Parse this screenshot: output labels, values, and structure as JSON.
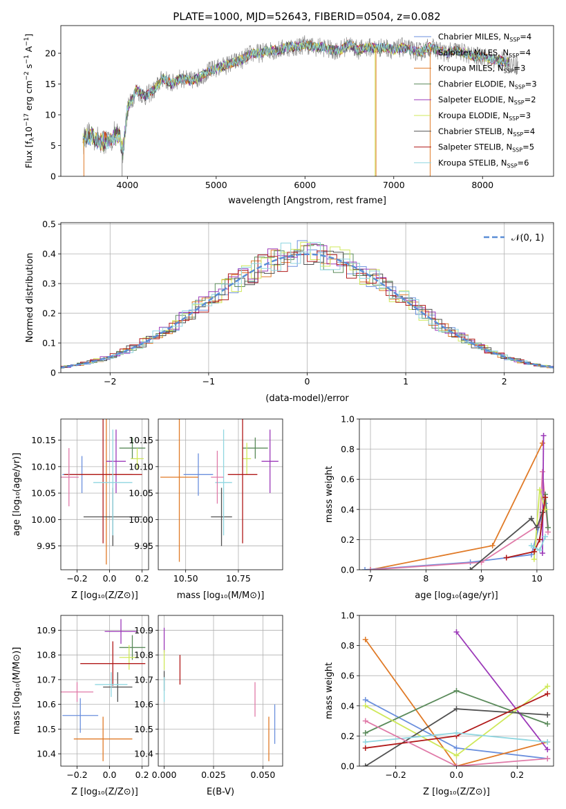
{
  "figure": {
    "title": "PLATE=1000, MJD=52643, FIBERID=0504, z=0.082"
  },
  "colors": {
    "series": [
      "#6a8fdd",
      "#e07a27",
      "#5a8a5a",
      "#9b38b8",
      "#cfe85a",
      "#505050",
      "#b01818",
      "#8fd6e0",
      "#e07aa8"
    ],
    "model_palette": [
      "#6a8fdd",
      "#e07a27",
      "#5a8a5a",
      "#9b38b8",
      "#cfe85a",
      "#505050",
      "#b01818",
      "#8fd6e0"
    ],
    "grid": "#b0b0b0",
    "gauss": "#5a8ed6"
  },
  "chart_data": [
    {
      "id": "spectrum",
      "type": "line",
      "title": "PLATE=1000, MJD=52643, FIBERID=0504, z=0.082",
      "xlabel": "wavelength [Angstrom, rest frame]",
      "ylabel_parts": [
        "Flux [f",
        "λ",
        "10",
        "−17",
        " erg cm",
        "−2",
        " s",
        "−1",
        " A",
        "−1",
        "]"
      ],
      "xlim": [
        3250,
        8800
      ],
      "ylim": [
        0,
        24.5
      ],
      "xticks": [
        4000,
        5000,
        6000,
        7000,
        8000
      ],
      "yticks": [
        0,
        5,
        10,
        15,
        20
      ],
      "grid": false,
      "legend_position": "upper right",
      "legend": [
        {
          "label": "Chabrier MILES, N",
          "sub": "SSP",
          "tail": "=4",
          "color": "#6a8fdd"
        },
        {
          "label": "Salpeter MILES, N",
          "sub": "SSP",
          "tail": "=4",
          "color": "#8a8a8a"
        },
        {
          "label": "Kroupa MILES, N",
          "sub": "SSP",
          "tail": "=3",
          "color": "#e07a27"
        },
        {
          "label": "Chabrier ELODIE, N",
          "sub": "SSP",
          "tail": "=3",
          "color": "#5a8a5a"
        },
        {
          "label": "Salpeter ELODIE, N",
          "sub": "SSP",
          "tail": "=2",
          "color": "#9b38b8"
        },
        {
          "label": "Kroupa ELODIE, N",
          "sub": "SSP",
          "tail": "=3",
          "color": "#cfe85a"
        },
        {
          "label": "Chabrier STELIB, N",
          "sub": "SSP",
          "tail": "=4",
          "color": "#505050"
        },
        {
          "label": "Salpeter STELIB, N",
          "sub": "SSP",
          "tail": "=5",
          "color": "#b01818"
        },
        {
          "label": "Kroupa STELIB, N",
          "sub": "SSP",
          "tail": "=6",
          "color": "#8fd6e0"
        }
      ],
      "continuum_nodes": [
        [
          3500,
          6
        ],
        [
          3600,
          6.5
        ],
        [
          3700,
          5.5
        ],
        [
          3800,
          6
        ],
        [
          3900,
          7
        ],
        [
          3950,
          4
        ],
        [
          4000,
          11
        ],
        [
          4100,
          14
        ],
        [
          4200,
          13
        ],
        [
          4300,
          14
        ],
        [
          4400,
          16
        ],
        [
          4500,
          15
        ],
        [
          4600,
          16
        ],
        [
          4700,
          15.5
        ],
        [
          4800,
          16
        ],
        [
          4900,
          17
        ],
        [
          5000,
          17.5
        ],
        [
          5100,
          18
        ],
        [
          5200,
          18.5
        ],
        [
          5300,
          19
        ],
        [
          5400,
          20
        ],
        [
          5500,
          20
        ],
        [
          5600,
          20.5
        ],
        [
          5700,
          20.5
        ],
        [
          5800,
          21
        ],
        [
          5900,
          21
        ],
        [
          6000,
          21.5
        ],
        [
          6100,
          21
        ],
        [
          6200,
          21
        ],
        [
          6300,
          20.5
        ],
        [
          6400,
          20.5
        ],
        [
          6500,
          21.5
        ],
        [
          6600,
          20.5
        ],
        [
          6700,
          21
        ],
        [
          6800,
          20.8
        ],
        [
          6900,
          21
        ],
        [
          7000,
          20.5
        ],
        [
          7100,
          21
        ],
        [
          7200,
          20.5
        ],
        [
          7300,
          20.2
        ],
        [
          7400,
          21
        ],
        [
          7500,
          20.5
        ],
        [
          7600,
          20
        ],
        [
          7700,
          20.5
        ],
        [
          7800,
          20
        ],
        [
          7900,
          19.5
        ],
        [
          8000,
          19.5
        ],
        [
          8100,
          19
        ],
        [
          8200,
          18.8
        ],
        [
          8300,
          18.5
        ],
        [
          8400,
          18
        ]
      ],
      "spikes": [
        [
          3510,
          0,
          "#e07a27"
        ],
        [
          3940,
          0,
          "#8a8a8a"
        ],
        [
          6800,
          0,
          "#e07a27"
        ],
        [
          6790,
          0,
          "#cfe85a"
        ],
        [
          7410,
          0,
          "#e07a27"
        ]
      ]
    },
    {
      "id": "residuals",
      "type": "histogram",
      "xlabel": "(data-model)/error",
      "ylabel": "Normed distribution",
      "xlim": [
        -2.5,
        2.5
      ],
      "ylim": [
        0,
        0.505
      ],
      "xticks": [
        -2,
        -1,
        0,
        1,
        2
      ],
      "yticks": [
        0.0,
        0.1,
        0.2,
        0.3,
        0.4,
        0.5
      ],
      "grid": true,
      "legend_position": "upper right",
      "legend": [
        {
          "label": "𝒩(0, 1)",
          "style": "dashed",
          "color": "#5a8ed6"
        }
      ],
      "gaussian": {
        "mean": 0,
        "sigma": 1
      },
      "bin_width": 0.1
    },
    {
      "id": "age_vs_Z",
      "type": "errorbar",
      "xlabel": "Z [log₁₀(Z/Z⊙)]",
      "ylabel": "age  [log₁₀(age/yr)]",
      "xlim": [
        -0.3,
        0.24
      ],
      "ylim": [
        9.905,
        10.19
      ],
      "xticks": [
        -0.2,
        0.0,
        0.2
      ],
      "xticklabels": [
        "−0.2",
        "0.0",
        "0.2"
      ],
      "yticks": [
        9.95,
        10.0,
        10.05,
        10.1,
        10.15
      ],
      "yticklabels": [
        "9.95",
        "10.00",
        "10.05",
        "10.10",
        "10.15"
      ],
      "grid": true,
      "points": [
        {
          "x": -0.17,
          "xerr": 0.12,
          "y": 10.085,
          "yerr": 0.035,
          "color": "#6a8fdd"
        },
        {
          "x": -0.02,
          "xerr": 0.16,
          "y": 10.085,
          "yerr": 0.17,
          "color": "#e07a27"
        },
        {
          "x": 0.14,
          "xerr": 0.08,
          "y": 10.135,
          "yerr": 0.02,
          "color": "#5a8a5a"
        },
        {
          "x": 0.04,
          "xerr": 0.06,
          "y": 10.11,
          "yerr": 0.06,
          "color": "#9b38b8"
        },
        {
          "x": 0.17,
          "xerr": 0.04,
          "y": 10.115,
          "yerr": 0.02,
          "color": "#cfe85a"
        },
        {
          "x": 0.02,
          "xerr": 0.18,
          "y": 10.005,
          "yerr": 0.055,
          "color": "#505050"
        },
        {
          "x": -0.04,
          "xerr": 0.24,
          "y": 10.085,
          "yerr": 0.13,
          "color": "#b01818"
        },
        {
          "x": 0.02,
          "xerr": 0.12,
          "y": 10.07,
          "yerr": 0.1,
          "color": "#8fd6e0"
        },
        {
          "x": -0.25,
          "xerr": 0.06,
          "y": 10.08,
          "yerr": 0.055,
          "color": "#e07aa8"
        }
      ]
    },
    {
      "id": "age_vs_mass",
      "type": "errorbar",
      "xlabel": "mass [log₁₀(M/M⊙)]",
      "xlim": [
        10.37,
        10.96
      ],
      "ylim": [
        9.905,
        10.19
      ],
      "xticks": [
        10.5,
        10.75
      ],
      "xticklabels": [
        "10.50",
        "10.75"
      ],
      "yticks": [
        9.95,
        10.0,
        10.05,
        10.1,
        10.15
      ],
      "yticklabels": [
        "9.95",
        "10.00",
        "10.05",
        "10.10",
        "10.15"
      ],
      "grid": true,
      "points": [
        {
          "x": 10.56,
          "xerr": 0.07,
          "y": 10.085,
          "yerr": 0.04,
          "color": "#6a8fdd"
        },
        {
          "x": 10.47,
          "xerr": 0.09,
          "y": 10.08,
          "yerr": 0.16,
          "color": "#e07a27"
        },
        {
          "x": 10.83,
          "xerr": 0.06,
          "y": 10.135,
          "yerr": 0.02,
          "color": "#5a8a5a"
        },
        {
          "x": 10.9,
          "xerr": 0.04,
          "y": 10.11,
          "yerr": 0.06,
          "color": "#9b38b8"
        },
        {
          "x": 10.79,
          "xerr": 0.02,
          "y": 10.115,
          "yerr": 0.03,
          "color": "#cfe85a"
        },
        {
          "x": 10.67,
          "xerr": 0.05,
          "y": 10.005,
          "yerr": 0.055,
          "color": "#505050"
        },
        {
          "x": 10.77,
          "xerr": 0.07,
          "y": 10.085,
          "yerr": 0.13,
          "color": "#b01818"
        },
        {
          "x": 10.68,
          "xerr": 0.04,
          "y": 10.07,
          "yerr": 0.1,
          "color": "#8fd6e0"
        },
        {
          "x": 10.65,
          "xerr": 0.03,
          "y": 10.08,
          "yerr": 0.05,
          "color": "#e07aa8"
        }
      ]
    },
    {
      "id": "weight_vs_age",
      "type": "line",
      "xlabel": "age  [log₁₀(age/yr)]",
      "ylabel": "mass weight",
      "xlim": [
        6.8,
        10.3
      ],
      "ylim": [
        0,
        1.0
      ],
      "xticks": [
        7,
        8,
        9,
        10
      ],
      "yticks": [
        0.0,
        0.2,
        0.4,
        0.6,
        0.8,
        1.0
      ],
      "yticklabels": [
        "0.0",
        "0.2",
        "0.4",
        "0.6",
        "0.8",
        "1.0"
      ],
      "grid": true,
      "series": [
        {
          "x": [
            7.0,
            9.2,
            10.1
          ],
          "y": [
            0.0,
            0.16,
            0.84
          ],
          "color": "#e07a27"
        },
        {
          "x": [
            6.9,
            8.8,
            9.9,
            10.15
          ],
          "y": [
            0.0,
            0.05,
            0.1,
            0.44
          ],
          "color": "#6a8fdd"
        },
        {
          "x": [
            7.0,
            9.0,
            10.05,
            10.1,
            10.2
          ],
          "y": [
            0.0,
            0.05,
            0.3,
            0.65,
            0.25
          ],
          "color": "#e07aa8"
        },
        {
          "x": [
            10.05,
            10.15,
            10.2
          ],
          "y": [
            0.2,
            0.5,
            0.28
          ],
          "color": "#5a8a5a"
        },
        {
          "x": [
            10.1,
            10.12
          ],
          "y": [
            0.11,
            0.89
          ],
          "color": "#9b38b8"
        },
        {
          "x": [
            9.95,
            10.05,
            10.15
          ],
          "y": [
            0.07,
            0.53,
            0.4
          ],
          "color": "#cfe85a"
        },
        {
          "x": [
            8.8,
            9.9,
            10.0,
            10.1
          ],
          "y": [
            0.0,
            0.34,
            0.28,
            0.38
          ],
          "color": "#505050"
        },
        {
          "x": [
            9.45,
            9.95,
            10.05,
            10.15
          ],
          "y": [
            0.08,
            0.12,
            0.2,
            0.48
          ],
          "color": "#b01818"
        },
        {
          "x": [
            9.9,
            10.05,
            10.15
          ],
          "y": [
            0.16,
            0.13,
            0.22
          ],
          "color": "#8fd6e0"
        }
      ]
    },
    {
      "id": "mass_vs_Z",
      "type": "errorbar",
      "xlabel": "Z [log₁₀(Z/Z⊙)]",
      "ylabel": "mass [log₁₀(M/M⊙)]",
      "xlim": [
        -0.3,
        0.24
      ],
      "ylim": [
        10.35,
        10.96
      ],
      "xticks": [
        -0.2,
        0.0,
        0.2
      ],
      "xticklabels": [
        "−0.2",
        "0.0",
        "0.2"
      ],
      "yticks": [
        10.4,
        10.5,
        10.6,
        10.7,
        10.8,
        10.9
      ],
      "grid": true,
      "points": [
        {
          "x": -0.18,
          "xerr": 0.11,
          "y": 10.555,
          "yerr": 0.07,
          "color": "#6a8fdd"
        },
        {
          "x": -0.04,
          "xerr": 0.18,
          "y": 10.46,
          "yerr": 0.09,
          "color": "#e07a27"
        },
        {
          "x": 0.14,
          "xerr": 0.08,
          "y": 10.83,
          "yerr": 0.05,
          "color": "#5a8a5a"
        },
        {
          "x": 0.07,
          "xerr": 0.1,
          "y": 10.895,
          "yerr": 0.05,
          "color": "#9b38b8"
        },
        {
          "x": 0.12,
          "xerr": 0.06,
          "y": 10.79,
          "yerr": 0.05,
          "color": "#cfe85a"
        },
        {
          "x": 0.05,
          "xerr": 0.09,
          "y": 10.67,
          "yerr": 0.06,
          "color": "#505050"
        },
        {
          "x": 0.02,
          "xerr": 0.2,
          "y": 10.765,
          "yerr": 0.09,
          "color": "#b01818"
        },
        {
          "x": 0.01,
          "xerr": 0.1,
          "y": 10.68,
          "yerr": 0.05,
          "color": "#8fd6e0"
        },
        {
          "x": -0.2,
          "xerr": 0.1,
          "y": 10.65,
          "yerr": 0.04,
          "color": "#e07aa8"
        }
      ]
    },
    {
      "id": "mass_vs_ebv",
      "type": "errorbar",
      "xlabel": "E(B-V)",
      "xlim": [
        -0.003,
        0.06
      ],
      "ylim": [
        10.35,
        10.96
      ],
      "xticks": [
        0.0,
        0.025,
        0.05
      ],
      "xticklabels": [
        "0.000",
        "0.025",
        "0.050"
      ],
      "yticks": [
        10.4,
        10.5,
        10.6,
        10.7,
        10.8,
        10.9
      ],
      "grid": true,
      "points": [
        {
          "x": 0.056,
          "xerr": 0,
          "y": 10.52,
          "yerr": 0.08,
          "color": "#6a8fdd"
        },
        {
          "x": 0.053,
          "xerr": 0,
          "y": 10.46,
          "yerr": 0.09,
          "color": "#e07a27"
        },
        {
          "x": 0.0,
          "xerr": 0,
          "y": 10.86,
          "yerr": 0.05,
          "color": "#9b38b8"
        },
        {
          "x": 0.0,
          "xerr": 0,
          "y": 10.78,
          "yerr": 0.04,
          "color": "#cfe85a"
        },
        {
          "x": 0.0,
          "xerr": 0,
          "y": 10.695,
          "yerr": 0.04,
          "color": "#505050"
        },
        {
          "x": 0.008,
          "xerr": 0,
          "y": 10.74,
          "yerr": 0.06,
          "color": "#b01818"
        },
        {
          "x": 0.0,
          "xerr": 0,
          "y": 10.66,
          "yerr": 0.05,
          "color": "#8fd6e0"
        },
        {
          "x": 0.046,
          "xerr": 0,
          "y": 10.62,
          "yerr": 0.07,
          "color": "#e07aa8"
        }
      ]
    },
    {
      "id": "weight_vs_Z",
      "type": "line",
      "xlabel": "Z [log₁₀(Z/Z⊙)]",
      "ylabel": "mass weight",
      "xlim": [
        -0.32,
        0.32
      ],
      "ylim": [
        0,
        1.0
      ],
      "xticks": [
        -0.2,
        0.0,
        0.2
      ],
      "xticklabels": [
        "−0.2",
        "0.0",
        "0.2"
      ],
      "yticks": [
        0.0,
        0.2,
        0.4,
        0.6,
        0.8,
        1.0
      ],
      "yticklabels": [
        "0.0",
        "0.2",
        "0.4",
        "0.6",
        "0.8",
        "1.0"
      ],
      "grid": true,
      "series": [
        {
          "x": [
            -0.3,
            0.0,
            0.3
          ],
          "y": [
            0.44,
            0.12,
            0.05
          ],
          "color": "#6a8fdd"
        },
        {
          "x": [
            -0.3,
            0.0,
            0.3
          ],
          "y": [
            0.84,
            0.0,
            0.16
          ],
          "color": "#e07a27"
        },
        {
          "x": [
            -0.3,
            0.0,
            0.3
          ],
          "y": [
            0.22,
            0.5,
            0.28
          ],
          "color": "#5a8a5a"
        },
        {
          "x": [
            0.0,
            0.3
          ],
          "y": [
            0.89,
            0.11
          ],
          "color": "#9b38b8"
        },
        {
          "x": [
            -0.3,
            0.0,
            0.3
          ],
          "y": [
            0.4,
            0.07,
            0.53
          ],
          "color": "#cfe85a"
        },
        {
          "x": [
            -0.3,
            0.0,
            0.3
          ],
          "y": [
            0.0,
            0.38,
            0.34
          ],
          "color": "#505050"
        },
        {
          "x": [
            -0.3,
            0.0,
            0.3
          ],
          "y": [
            0.12,
            0.2,
            0.48
          ],
          "color": "#b01818"
        },
        {
          "x": [
            -0.3,
            0.0,
            0.3
          ],
          "y": [
            0.16,
            0.22,
            0.16
          ],
          "color": "#8fd6e0"
        },
        {
          "x": [
            -0.3,
            0.0,
            0.3
          ],
          "y": [
            0.3,
            0.0,
            0.05
          ],
          "color": "#e07aa8"
        }
      ]
    }
  ]
}
